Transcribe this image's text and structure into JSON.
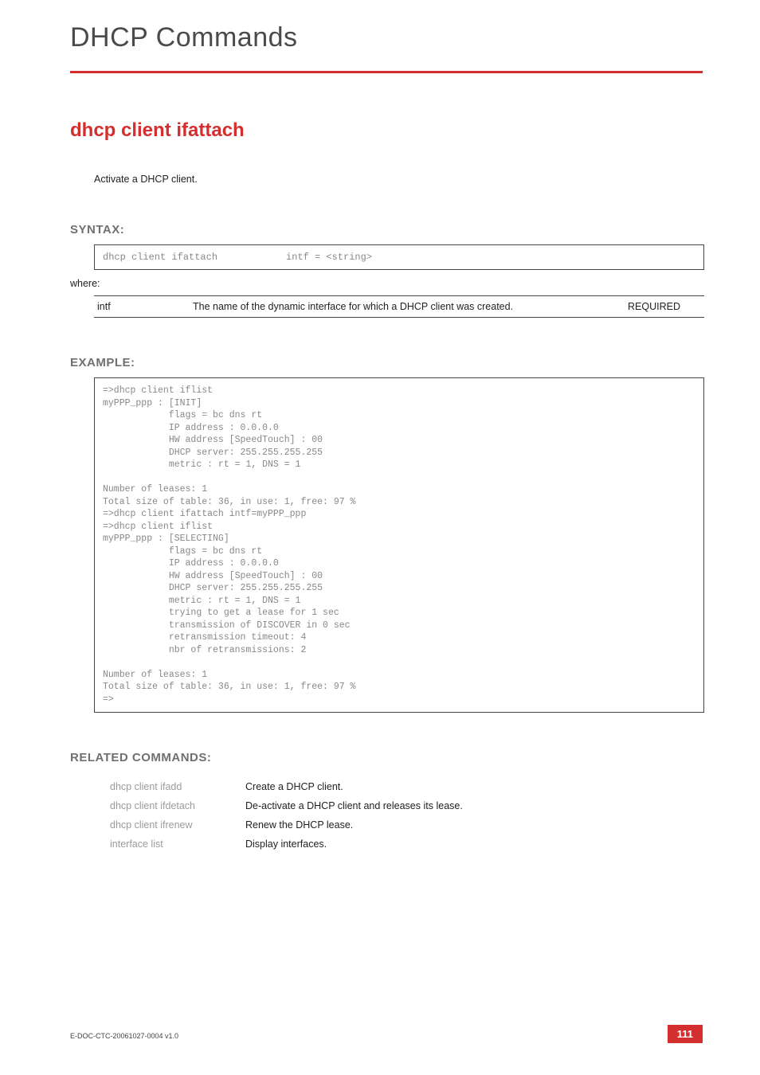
{
  "chapter_title": "DHCP Commands",
  "command_title": "dhcp client ifattach",
  "description": "Activate a DHCP client.",
  "syntax": {
    "heading": "SYNTAX:",
    "command": "dhcp client ifattach",
    "args": "intf = <string>",
    "where": "where:",
    "params": [
      {
        "name": "intf",
        "description": "The name of the dynamic interface for which a DHCP client was created.",
        "required": "REQUIRED"
      }
    ]
  },
  "example": {
    "heading": "EXAMPLE:",
    "text": "=>dhcp client iflist\nmyPPP_ppp : [INIT]\n            flags = bc dns rt\n            IP address : 0.0.0.0\n            HW address [SpeedTouch] : 00\n            DHCP server: 255.255.255.255\n            metric : rt = 1, DNS = 1\n\nNumber of leases: 1\nTotal size of table: 36, in use: 1, free: 97 %\n=>dhcp client ifattach intf=myPPP_ppp\n=>dhcp client iflist\nmyPPP_ppp : [SELECTING]\n            flags = bc dns rt\n            IP address : 0.0.0.0\n            HW address [SpeedTouch] : 00\n            DHCP server: 255.255.255.255\n            metric : rt = 1, DNS = 1\n            trying to get a lease for 1 sec\n            transmission of DISCOVER in 0 sec\n            retransmission timeout: 4\n            nbr of retransmissions: 2\n\nNumber of leases: 1\nTotal size of table: 36, in use: 1, free: 97 %\n=>"
  },
  "related": {
    "heading": "RELATED COMMANDS:",
    "rows": [
      {
        "cmd": "dhcp client ifadd",
        "desc": "Create a DHCP client."
      },
      {
        "cmd": "dhcp client ifdetach",
        "desc": "De-activate a DHCP client and releases its lease."
      },
      {
        "cmd": "dhcp client ifrenew",
        "desc": "Renew the DHCP lease."
      },
      {
        "cmd": "interface list",
        "desc": "Display interfaces."
      }
    ]
  },
  "footer": {
    "doc_id": "E-DOC-CTC-20061027-0004 v1.0",
    "page": "111"
  },
  "colors": {
    "red": "#d32f2f",
    "grey_text": "#888888",
    "heading_grey": "#707070",
    "light_grey": "#9b9b9b",
    "border": "#444444"
  }
}
